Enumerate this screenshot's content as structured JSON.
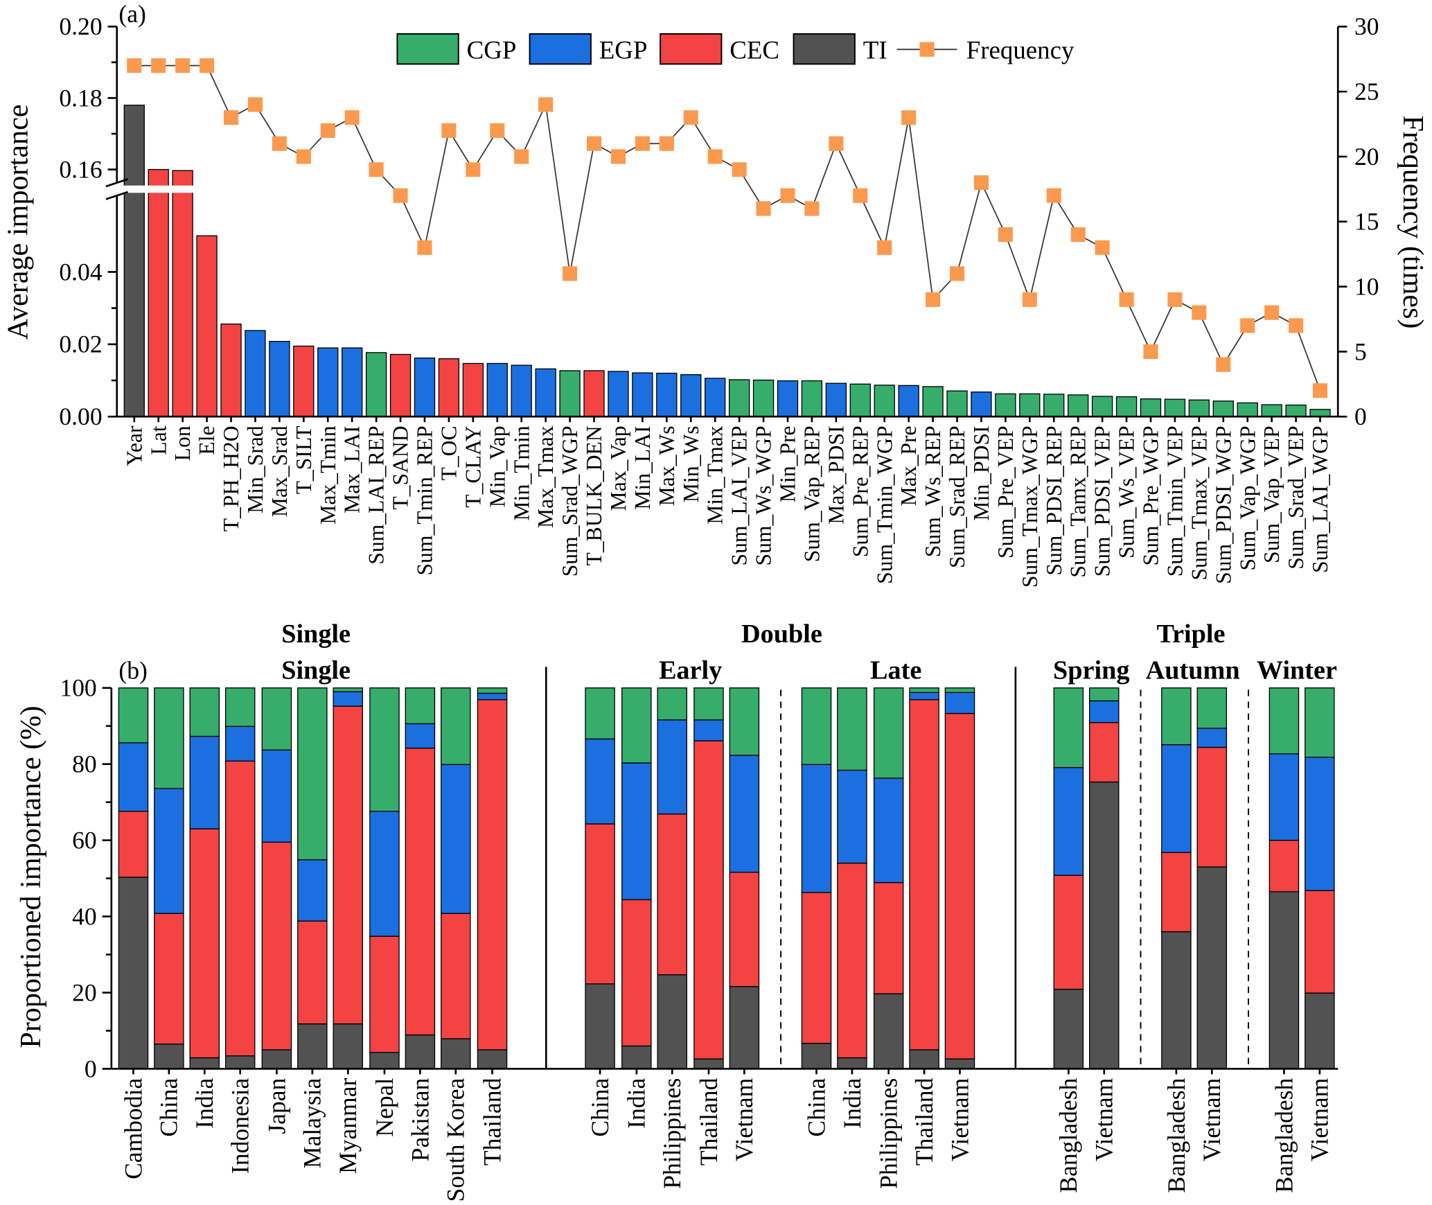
{
  "colors": {
    "CGP": "#37ad6b",
    "EGP": "#1c6fdf",
    "CEC": "#f34343",
    "TI": "#525252",
    "Frequency": "#fb9a4e"
  },
  "chart_data": [
    {
      "type": "bar",
      "panel_label": "(a)",
      "ylabel": "Average importance",
      "y2label": "Frequency (times)",
      "ylim": [
        0,
        0.2
      ],
      "axis_break": [
        0.05,
        0.155
      ],
      "y_ticks": [
        "0.00",
        "0.02",
        "0.04",
        "0.16",
        "0.18",
        "0.20"
      ],
      "y2lim": [
        0,
        30
      ],
      "y2_ticks": [
        "0",
        "5",
        "10",
        "15",
        "20",
        "25",
        "30"
      ],
      "legend": {
        "placement": "top",
        "entries": [
          "CGP",
          "EGP",
          "CEC",
          "TI",
          "Frequency"
        ]
      },
      "categories": [
        "Year",
        "Lat",
        "Lon",
        "Ele",
        "T_PH_H2O",
        "Min_Srad",
        "Max_Srad",
        "T_SILT",
        "Max_Tmin",
        "Max_LAI",
        "Sum_LAI_REP",
        "T_SAND",
        "Sum_Tmin_REP",
        "T_OC",
        "T_CLAY",
        "Min_Vap",
        "Min_Tmin",
        "Max_Tmax",
        "Sum_Srad_WGP",
        "T_BULK_DEN",
        "Max_Vap",
        "Min_LAI",
        "Max_Ws",
        "Min_Ws",
        "Min_Tmax",
        "Sum_LAI_VEP",
        "Sum_Ws_WGP",
        "Min_Pre",
        "Sum_Vap_REP",
        "Max_PDSI",
        "Sum_Pre_REP",
        "Sum_Tmin_WGP",
        "Max_Pre",
        "Sum_Ws_REP",
        "Sum_Srad_REP",
        "Min_PDSI",
        "Sum_Pre_VEP",
        "Sum_Tmax_WGP",
        "Sum_PDSI_REP",
        "Sum_Tamx_REP",
        "Sum_PDSI_VEP",
        "Sum_Ws_VEP",
        "Sum_Pre_WGP",
        "Sum_Tmin_VEP",
        "Sum_Tmax_VEP",
        "Sum_PDSI_WGP",
        "Sum_Vap_WGP",
        "Sum_Vap_VEP",
        "Sum_Srad_VEP",
        "Sum_LAI_WGP"
      ],
      "groups": [
        "TI",
        "CEC",
        "CEC",
        "CEC",
        "CEC",
        "EGP",
        "EGP",
        "CEC",
        "EGP",
        "EGP",
        "CGP",
        "CEC",
        "EGP",
        "CEC",
        "CEC",
        "EGP",
        "EGP",
        "EGP",
        "CGP",
        "CEC",
        "EGP",
        "EGP",
        "EGP",
        "EGP",
        "EGP",
        "CGP",
        "CGP",
        "EGP",
        "CGP",
        "EGP",
        "CGP",
        "CGP",
        "EGP",
        "CGP",
        "CGP",
        "EGP",
        "CGP",
        "CGP",
        "CGP",
        "CGP",
        "CGP",
        "CGP",
        "CGP",
        "CGP",
        "CGP",
        "CGP",
        "CGP",
        "CGP",
        "CGP",
        "CGP"
      ],
      "values": [
        0.178,
        0.16,
        0.1597,
        0.05,
        0.0256,
        0.0238,
        0.0208,
        0.0195,
        0.019,
        0.019,
        0.0177,
        0.0172,
        0.0162,
        0.016,
        0.0147,
        0.0147,
        0.0142,
        0.0132,
        0.0127,
        0.0127,
        0.0125,
        0.0121,
        0.012,
        0.0116,
        0.0106,
        0.0102,
        0.0101,
        0.0099,
        0.0099,
        0.0092,
        0.009,
        0.0087,
        0.0086,
        0.0083,
        0.0071,
        0.0068,
        0.0063,
        0.0063,
        0.0062,
        0.006,
        0.0056,
        0.0055,
        0.0049,
        0.0048,
        0.0046,
        0.0043,
        0.0038,
        0.0033,
        0.0032,
        0.002
      ],
      "frequency": [
        27,
        27,
        27,
        27,
        23,
        24,
        21,
        20,
        22,
        23,
        19,
        17,
        13,
        22,
        19,
        22,
        20,
        24,
        11,
        21,
        20,
        21,
        21,
        23,
        20,
        19,
        16,
        17,
        16,
        21,
        17,
        13,
        23,
        9,
        11,
        18,
        14,
        9,
        17,
        14,
        13,
        9,
        5,
        9,
        8,
        4,
        7,
        8,
        7,
        2
      ]
    },
    {
      "type": "bar",
      "stacked": true,
      "panel_label": "(b)",
      "ylabel": "Proportioned importance (%)",
      "ylim": [
        0,
        100
      ],
      "y_ticks": [
        "0",
        "20",
        "40",
        "60",
        "80",
        "100"
      ],
      "stack_order": [
        "TI",
        "CEC",
        "EGP",
        "CGP"
      ],
      "sections": [
        {
          "title": "Single",
          "subgroups": [
            {
              "title": "Single",
              "bars": [
                {
                  "country": "Cambodia",
                  "TI": 50.3,
                  "CEC": 17.3,
                  "EGP": 18.0,
                  "CGP": 14.4
                },
                {
                  "country": "China",
                  "TI": 6.5,
                  "CEC": 34.3,
                  "EGP": 32.8,
                  "CGP": 26.4
                },
                {
                  "country": "India",
                  "TI": 2.9,
                  "CEC": 60.1,
                  "EGP": 24.3,
                  "CGP": 12.7
                },
                {
                  "country": "Indonesia",
                  "TI": 3.4,
                  "CEC": 77.4,
                  "EGP": 9.1,
                  "CGP": 10.1
                },
                {
                  "country": "Japan",
                  "TI": 5.0,
                  "CEC": 54.5,
                  "EGP": 24.2,
                  "CGP": 16.3
                },
                {
                  "country": "Malaysia",
                  "TI": 11.8,
                  "CEC": 27.0,
                  "EGP": 16.1,
                  "CGP": 45.1
                },
                {
                  "country": "Myanmar",
                  "TI": 11.8,
                  "CEC": 83.4,
                  "EGP": 3.8,
                  "CGP": 1.0
                },
                {
                  "country": "Nepal",
                  "TI": 4.3,
                  "CEC": 30.5,
                  "EGP": 32.8,
                  "CGP": 32.4
                },
                {
                  "country": "Pakistan",
                  "TI": 8.9,
                  "CEC": 75.3,
                  "EGP": 6.4,
                  "CGP": 9.4
                },
                {
                  "country": "South Korea",
                  "TI": 7.9,
                  "CEC": 32.9,
                  "EGP": 39.1,
                  "CGP": 20.1
                },
                {
                  "country": "Thailand",
                  "TI": 5.0,
                  "CEC": 91.9,
                  "EGP": 1.7,
                  "CGP": 1.4
                }
              ]
            }
          ]
        },
        {
          "title": "Double",
          "subgroups": [
            {
              "title": "Early",
              "bars": [
                {
                  "country": "China",
                  "TI": 22.3,
                  "CEC": 42.0,
                  "EGP": 22.3,
                  "CGP": 13.4
                },
                {
                  "country": "India",
                  "TI": 6.0,
                  "CEC": 38.4,
                  "EGP": 35.9,
                  "CGP": 19.7
                },
                {
                  "country": "Philippines",
                  "TI": 24.7,
                  "CEC": 42.2,
                  "EGP": 24.7,
                  "CGP": 8.4
                },
                {
                  "country": "Thailand",
                  "TI": 2.6,
                  "CEC": 83.5,
                  "EGP": 5.5,
                  "CGP": 8.4
                },
                {
                  "country": "Vietnam",
                  "TI": 21.6,
                  "CEC": 30.0,
                  "EGP": 30.7,
                  "CGP": 17.7
                }
              ]
            },
            {
              "title": "Late",
              "bars": [
                {
                  "country": "China",
                  "TI": 6.7,
                  "CEC": 39.6,
                  "EGP": 33.6,
                  "CGP": 20.1
                },
                {
                  "country": "India",
                  "TI": 2.9,
                  "CEC": 51.1,
                  "EGP": 24.4,
                  "CGP": 21.6
                },
                {
                  "country": "Philippines",
                  "TI": 19.7,
                  "CEC": 29.2,
                  "EGP": 27.4,
                  "CGP": 23.7
                },
                {
                  "country": "Thailand",
                  "TI": 5.0,
                  "CEC": 91.9,
                  "EGP": 1.9,
                  "CGP": 1.2
                },
                {
                  "country": "Vietnam",
                  "TI": 2.6,
                  "CEC": 90.7,
                  "EGP": 5.5,
                  "CGP": 1.2
                }
              ]
            }
          ]
        },
        {
          "title": "Triple",
          "subgroups": [
            {
              "title": "Spring",
              "bars": [
                {
                  "country": "Bangladesh",
                  "TI": 20.9,
                  "CEC": 29.9,
                  "EGP": 28.3,
                  "CGP": 20.9
                },
                {
                  "country": "Vietnam",
                  "TI": 75.3,
                  "CEC": 15.6,
                  "EGP": 5.7,
                  "CGP": 3.4
                }
              ]
            },
            {
              "title": "Autumn",
              "bars": [
                {
                  "country": "Bangladesh",
                  "TI": 36.0,
                  "CEC": 20.8,
                  "EGP": 28.3,
                  "CGP": 14.9
                },
                {
                  "country": "Vietnam",
                  "TI": 53.0,
                  "CEC": 31.4,
                  "EGP": 5.0,
                  "CGP": 10.6
                }
              ]
            },
            {
              "title": "Winter",
              "bars": [
                {
                  "country": "Bangladesh",
                  "TI": 46.5,
                  "CEC": 13.5,
                  "EGP": 22.7,
                  "CGP": 17.3
                },
                {
                  "country": "Vietnam",
                  "TI": 19.9,
                  "CEC": 26.9,
                  "EGP": 35.0,
                  "CGP": 18.2
                }
              ]
            }
          ]
        }
      ]
    }
  ]
}
